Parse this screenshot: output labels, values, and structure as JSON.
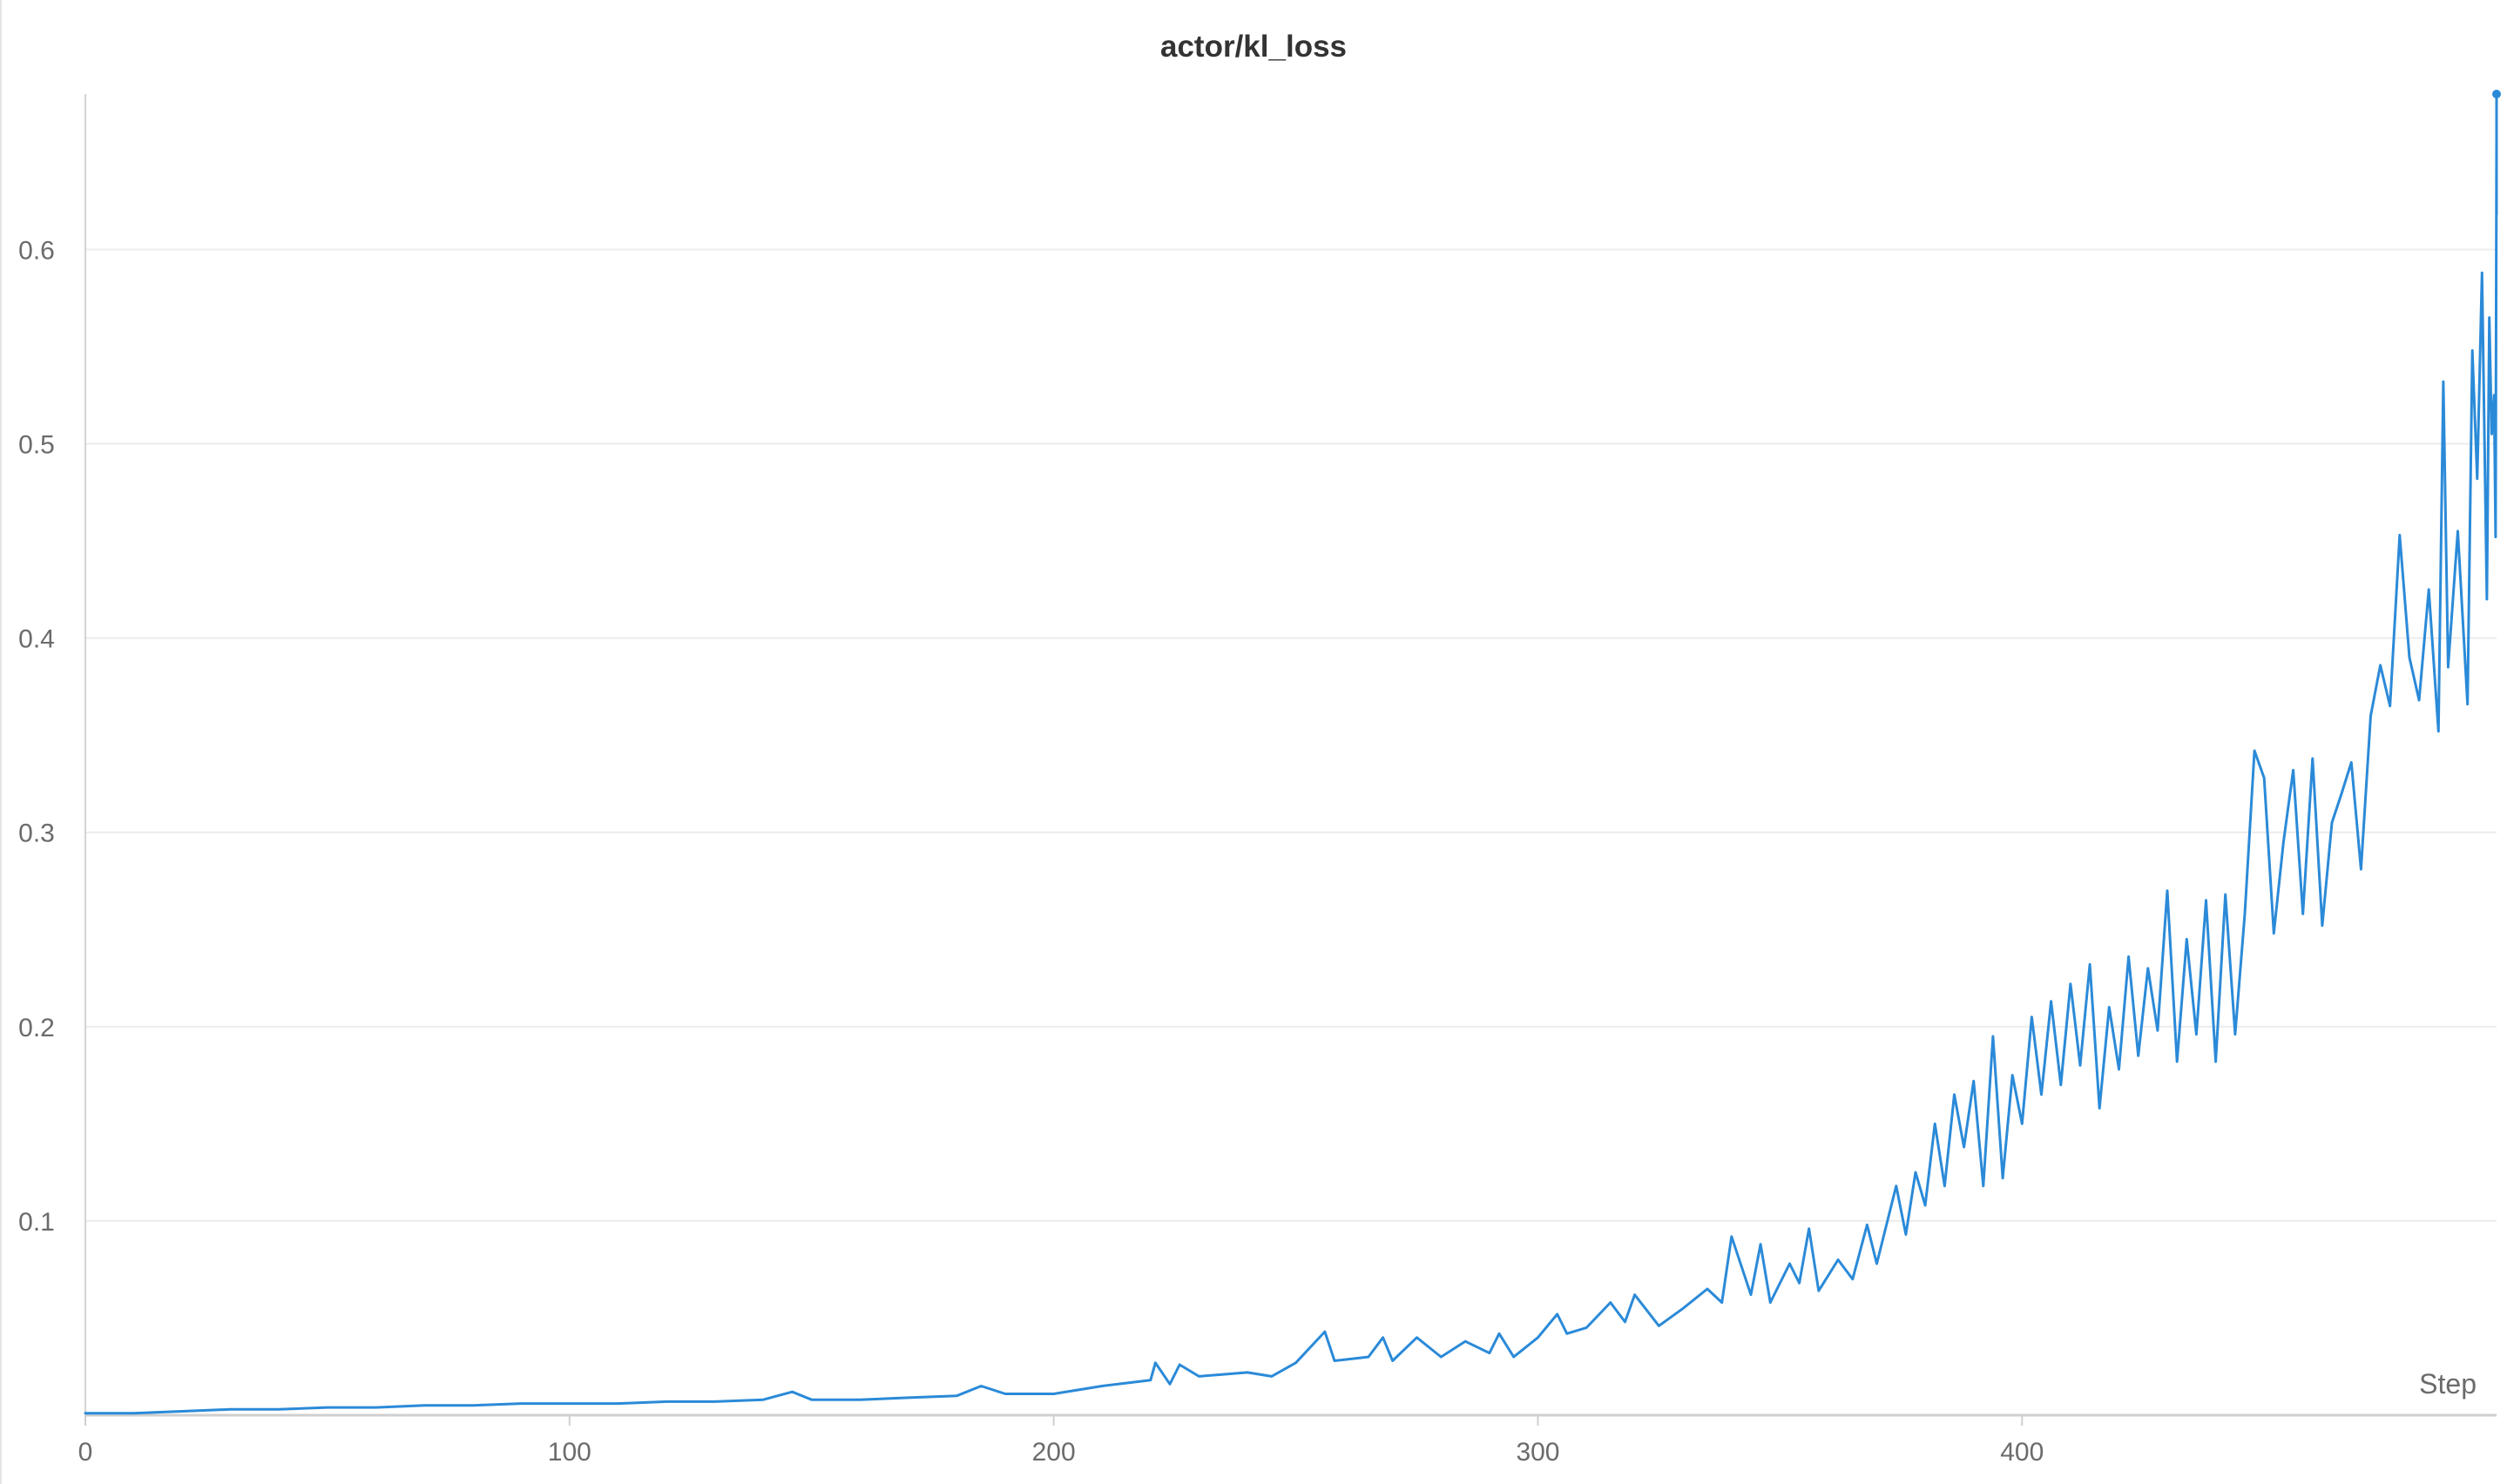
{
  "chart_data": {
    "type": "line",
    "title": "actor/kl_loss",
    "xlabel": "Step",
    "ylabel": "",
    "xlim": [
      0,
      498
    ],
    "ylim": [
      0,
      0.68
    ],
    "x_ticks": [
      0,
      100,
      200,
      300,
      400
    ],
    "y_ticks": [
      0.1,
      0.2,
      0.3,
      0.4,
      0.5,
      0.6
    ],
    "grid": "horizontal",
    "legend": "none",
    "color": "#2b8ad8",
    "series": [
      {
        "name": "",
        "points": [
          [
            0,
            0.001
          ],
          [
            10,
            0.001
          ],
          [
            20,
            0.002
          ],
          [
            30,
            0.003
          ],
          [
            40,
            0.003
          ],
          [
            50,
            0.004
          ],
          [
            60,
            0.004
          ],
          [
            70,
            0.005
          ],
          [
            80,
            0.005
          ],
          [
            90,
            0.006
          ],
          [
            100,
            0.006
          ],
          [
            110,
            0.006
          ],
          [
            120,
            0.007
          ],
          [
            130,
            0.007
          ],
          [
            140,
            0.008
          ],
          [
            146,
            0.012
          ],
          [
            150,
            0.008
          ],
          [
            160,
            0.008
          ],
          [
            170,
            0.009
          ],
          [
            180,
            0.01
          ],
          [
            185,
            0.015
          ],
          [
            190,
            0.011
          ],
          [
            200,
            0.011
          ],
          [
            210,
            0.015
          ],
          [
            220,
            0.018
          ],
          [
            221,
            0.027
          ],
          [
            224,
            0.016
          ],
          [
            226,
            0.026
          ],
          [
            230,
            0.02
          ],
          [
            240,
            0.022
          ],
          [
            245,
            0.02
          ],
          [
            250,
            0.027
          ],
          [
            256,
            0.043
          ],
          [
            258,
            0.028
          ],
          [
            265,
            0.03
          ],
          [
            268,
            0.04
          ],
          [
            270,
            0.028
          ],
          [
            275,
            0.04
          ],
          [
            280,
            0.03
          ],
          [
            285,
            0.038
          ],
          [
            290,
            0.032
          ],
          [
            292,
            0.042
          ],
          [
            295,
            0.03
          ],
          [
            300,
            0.04
          ],
          [
            304,
            0.052
          ],
          [
            306,
            0.042
          ],
          [
            310,
            0.045
          ],
          [
            315,
            0.058
          ],
          [
            318,
            0.048
          ],
          [
            320,
            0.062
          ],
          [
            325,
            0.046
          ],
          [
            330,
            0.055
          ],
          [
            335,
            0.065
          ],
          [
            338,
            0.058
          ],
          [
            340,
            0.092
          ],
          [
            344,
            0.062
          ],
          [
            346,
            0.088
          ],
          [
            348,
            0.058
          ],
          [
            352,
            0.078
          ],
          [
            354,
            0.068
          ],
          [
            356,
            0.096
          ],
          [
            358,
            0.064
          ],
          [
            362,
            0.08
          ],
          [
            365,
            0.07
          ],
          [
            368,
            0.098
          ],
          [
            370,
            0.078
          ],
          [
            374,
            0.118
          ],
          [
            376,
            0.093
          ],
          [
            378,
            0.125
          ],
          [
            380,
            0.108
          ],
          [
            382,
            0.15
          ],
          [
            384,
            0.118
          ],
          [
            386,
            0.165
          ],
          [
            388,
            0.138
          ],
          [
            390,
            0.172
          ],
          [
            392,
            0.118
          ],
          [
            394,
            0.195
          ],
          [
            396,
            0.122
          ],
          [
            398,
            0.175
          ],
          [
            400,
            0.15
          ],
          [
            402,
            0.205
          ],
          [
            404,
            0.165
          ],
          [
            406,
            0.213
          ],
          [
            408,
            0.17
          ],
          [
            410,
            0.222
          ],
          [
            412,
            0.18
          ],
          [
            414,
            0.232
          ],
          [
            416,
            0.158
          ],
          [
            418,
            0.21
          ],
          [
            420,
            0.178
          ],
          [
            422,
            0.236
          ],
          [
            424,
            0.185
          ],
          [
            426,
            0.23
          ],
          [
            428,
            0.198
          ],
          [
            430,
            0.27
          ],
          [
            432,
            0.182
          ],
          [
            434,
            0.245
          ],
          [
            436,
            0.196
          ],
          [
            438,
            0.265
          ],
          [
            440,
            0.182
          ],
          [
            442,
            0.268
          ],
          [
            444,
            0.196
          ],
          [
            446,
            0.258
          ],
          [
            448,
            0.342
          ],
          [
            450,
            0.328
          ],
          [
            452,
            0.248
          ],
          [
            454,
            0.295
          ],
          [
            456,
            0.332
          ],
          [
            458,
            0.258
          ],
          [
            460,
            0.338
          ],
          [
            462,
            0.252
          ],
          [
            464,
            0.305
          ],
          [
            466,
            0.32
          ],
          [
            468,
            0.336
          ],
          [
            470,
            0.281
          ],
          [
            472,
            0.36
          ],
          [
            474,
            0.386
          ],
          [
            476,
            0.365
          ],
          [
            478,
            0.453
          ],
          [
            480,
            0.39
          ],
          [
            482,
            0.368
          ],
          [
            484,
            0.425
          ],
          [
            486,
            0.352
          ],
          [
            487,
            0.532
          ],
          [
            488,
            0.385
          ],
          [
            490,
            0.455
          ],
          [
            492,
            0.366
          ],
          [
            493,
            0.548
          ],
          [
            494,
            0.482
          ],
          [
            495,
            0.588
          ],
          [
            496,
            0.42
          ],
          [
            496.5,
            0.565
          ],
          [
            497,
            0.505
          ],
          [
            497.5,
            0.525
          ],
          [
            497.8,
            0.452
          ],
          [
            498,
            0.66
          ],
          [
            498,
            0.618
          ],
          [
            498,
            0.68
          ]
        ]
      }
    ]
  }
}
